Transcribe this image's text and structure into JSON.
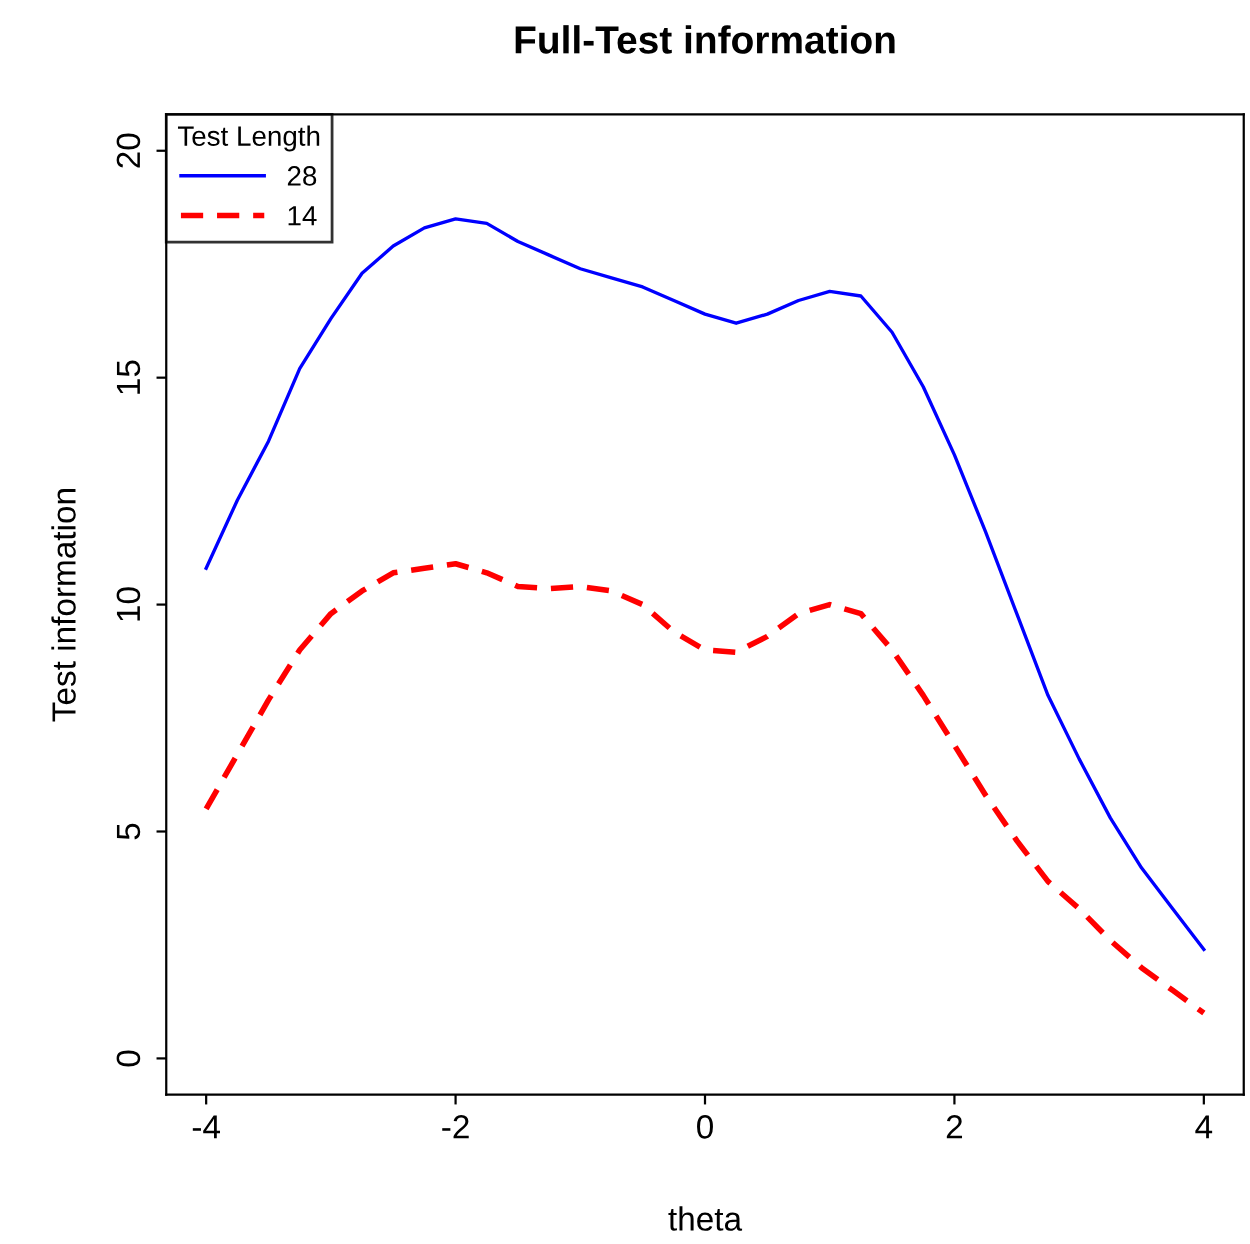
{
  "chart_data": {
    "type": "line",
    "title": "Full-Test information",
    "xlabel": "theta",
    "ylabel": "Test information",
    "legend_title": "Test Length",
    "x": [
      -4,
      -3.75,
      -3.5,
      -3.25,
      -3,
      -2.75,
      -2.5,
      -2.25,
      -2,
      -1.75,
      -1.5,
      -1.25,
      -1,
      -0.75,
      -0.5,
      -0.25,
      0,
      0.25,
      0.5,
      0.75,
      1,
      1.25,
      1.5,
      1.75,
      2,
      2.25,
      2.5,
      2.75,
      3,
      3.25,
      3.5,
      3.75,
      4
    ],
    "series": [
      {
        "name": "28",
        "color": "#0000ff",
        "line_style": "solid",
        "values": [
          10.8,
          12.3,
          13.6,
          15.2,
          16.3,
          17.3,
          17.9,
          18.3,
          18.5,
          18.4,
          18.0,
          17.7,
          17.4,
          17.2,
          17.0,
          16.7,
          16.4,
          16.2,
          16.4,
          16.7,
          16.9,
          16.8,
          16.0,
          14.8,
          13.3,
          11.6,
          9.8,
          8.0,
          6.6,
          5.3,
          4.2,
          3.3,
          2.4
        ]
      },
      {
        "name": "14",
        "color": "#ff0000",
        "line_style": "dashed",
        "values": [
          5.5,
          6.7,
          7.9,
          9.0,
          9.8,
          10.3,
          10.7,
          10.8,
          10.9,
          10.7,
          10.4,
          10.35,
          10.4,
          10.3,
          10.0,
          9.4,
          9.0,
          8.95,
          9.3,
          9.8,
          10.0,
          9.8,
          9.0,
          8.0,
          6.9,
          5.8,
          4.8,
          3.9,
          3.3,
          2.6,
          2.0,
          1.5,
          1.0
        ]
      }
    ],
    "xlim": [
      -4.32,
      4.32
    ],
    "ylim": [
      -0.8,
      20.8
    ],
    "xticks": [
      -4,
      -2,
      0,
      2,
      4
    ],
    "yticks": [
      0,
      5,
      10,
      15,
      20
    ],
    "grid": false,
    "legend": "top left"
  }
}
